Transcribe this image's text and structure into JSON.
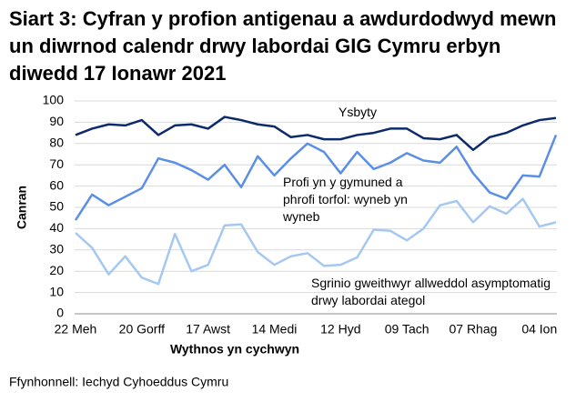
{
  "chart_data": {
    "type": "line",
    "title": "Siart 3: Cyfran y profion antigenau a awdurdodwyd mewn un diwrnod calendr drwy labordai GIG Cymru erbyn diwedd 17 Ionawr 2021",
    "x_label": "Wythnos yn cychwyn",
    "y_label": "Canran",
    "source": "Ffynhonnell: Iechyd Cyhoeddus Cymru",
    "categories": [
      "22 Meh",
      null,
      null,
      null,
      "20 Gorff",
      null,
      null,
      null,
      "17 Awst",
      null,
      null,
      null,
      "14 Medi",
      null,
      null,
      null,
      "12 Hyd",
      null,
      null,
      null,
      "09 Tach",
      null,
      null,
      null,
      "07 Rhag",
      null,
      null,
      null,
      "04 Ion",
      null
    ],
    "series": [
      {
        "name": "Ysbyty",
        "color": "#0d2a6b",
        "values": [
          84,
          87,
          89,
          88.5,
          91,
          84,
          88.5,
          89,
          87,
          92.5,
          91,
          89,
          88,
          83,
          84,
          82,
          82,
          84,
          85,
          87,
          87,
          82.5,
          82,
          84,
          77,
          83,
          85,
          88.5,
          91,
          92
        ]
      },
      {
        "name": "Profi yn y gymuned a phrofi torfol: wyneb yn wyneb",
        "color": "#5b8ee6",
        "values": [
          44,
          56,
          51,
          55,
          59,
          73,
          71,
          67.5,
          63,
          70,
          59.5,
          74,
          65,
          73,
          80,
          76,
          66,
          76,
          68,
          71,
          75.5,
          72,
          71,
          78.5,
          66,
          57,
          54,
          65,
          64.5,
          84
        ]
      },
      {
        "name": "Sgrinio gweithwyr allweddol asymptomatig drwy labordai ategol",
        "color": "#a5c8f0",
        "values": [
          38,
          31,
          18.5,
          27,
          17,
          14,
          37.5,
          20,
          23,
          41.5,
          42,
          29,
          23,
          27,
          28.5,
          22.5,
          23,
          26.5,
          39.5,
          39,
          34.5,
          40,
          51,
          53,
          43,
          50.5,
          47,
          54,
          41,
          43
        ]
      }
    ],
    "ylim": [
      0,
      100
    ],
    "yticks": [
      0,
      10,
      20,
      30,
      40,
      50,
      60,
      70,
      80,
      90,
      100
    ],
    "grid": true
  }
}
